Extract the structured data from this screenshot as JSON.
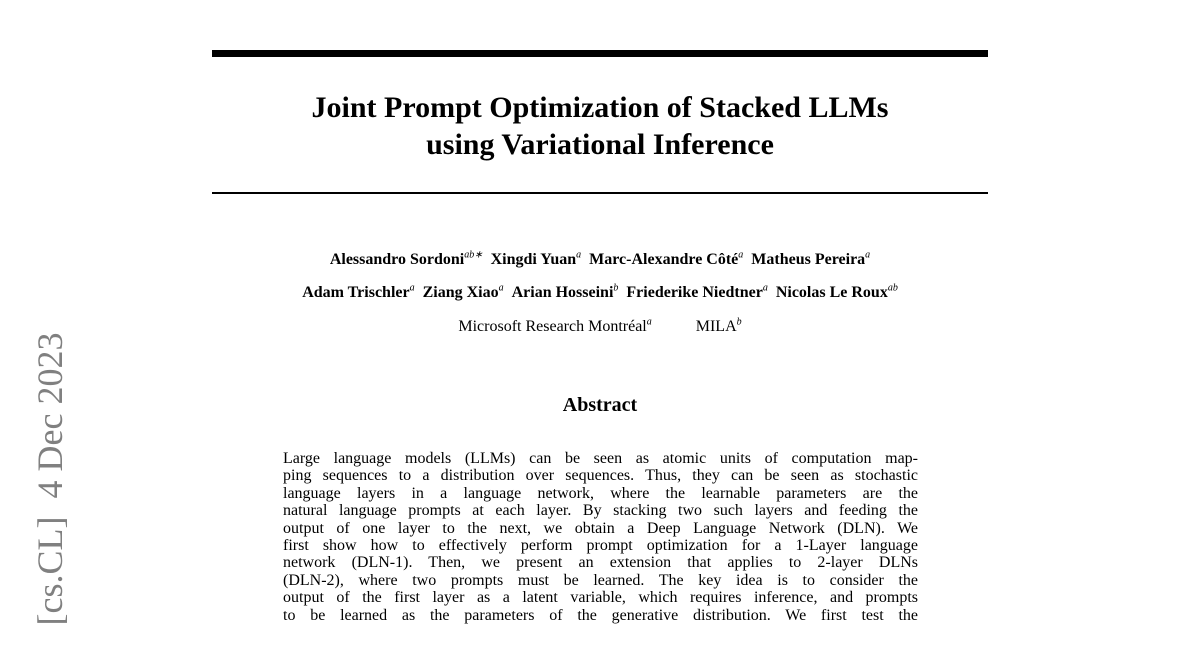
{
  "side_stamp": "[cs.CL]  4 Dec 2023",
  "title": {
    "lines": [
      "Joint Prompt Optimization of Stacked LLMs",
      "using Variational Inference"
    ]
  },
  "authors": {
    "rows": [
      [
        {
          "name": "Alessandro Sordoni",
          "sup": "ab∗"
        },
        {
          "name": "Xingdi Yuan",
          "sup": "a"
        },
        {
          "name": "Marc-Alexandre Côté",
          "sup": "a"
        },
        {
          "name": "Matheus Pereira",
          "sup": "a"
        }
      ],
      [
        {
          "name": "Adam Trischler",
          "sup": "a"
        },
        {
          "name": "Ziang Xiao",
          "sup": "a"
        },
        {
          "name": "Arian Hosseini",
          "sup": "b"
        },
        {
          "name": "Friederike Niedtner",
          "sup": "a"
        },
        {
          "name": "Nicolas Le Roux",
          "sup": "ab"
        }
      ]
    ]
  },
  "affiliations": [
    {
      "name": "Microsoft Research Montréal",
      "sup": "a"
    },
    {
      "name": "MILA",
      "sup": "b"
    }
  ],
  "abstract": {
    "heading": "Abstract",
    "lines": [
      "Large language models (LLMs) can be seen as atomic units of computation map-",
      "ping sequences to a distribution over sequences. Thus, they can be seen as stochastic",
      "language layers in a language network, where the learnable parameters are the",
      "natural language prompts at each layer. By stacking two such layers and feeding the",
      "output of one layer to the next, we obtain a Deep Language Network (DLN). We",
      "first show how to effectively perform prompt optimization for a 1-Layer language",
      "network (DLN-1). Then, we present an extension that applies to 2-layer DLNs",
      "(DLN-2), where two prompts must be learned. The key idea is to consider the",
      "output of the first layer as a latent variable, which requires inference, and prompts",
      "to be learned as the parameters of the generative distribution. We first test the"
    ]
  }
}
